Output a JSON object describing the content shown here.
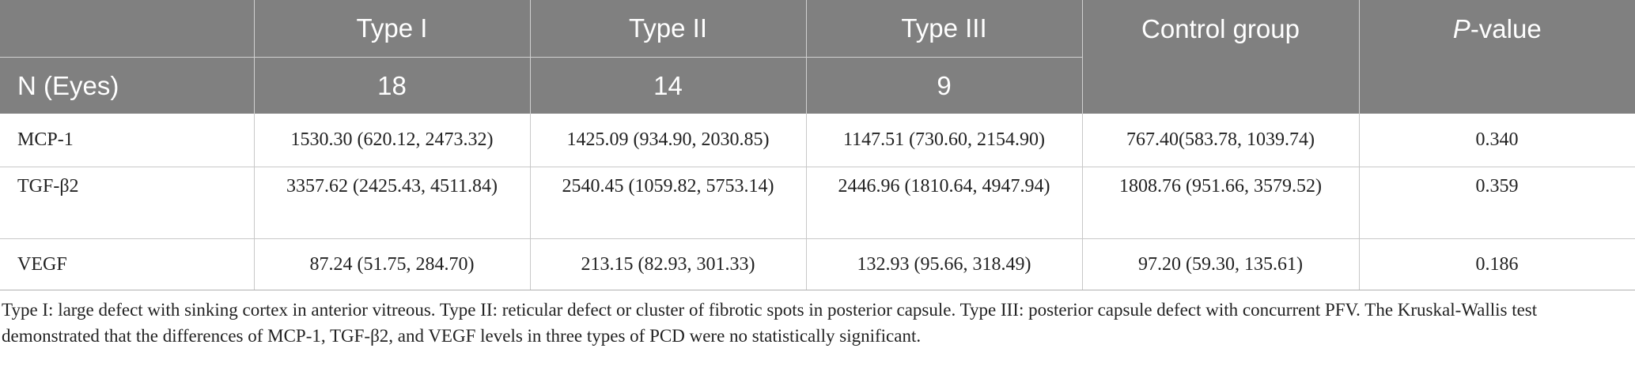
{
  "header": {
    "row1": {
      "col0": "",
      "type1": "Type I",
      "type2": "Type II",
      "type3": "Type III",
      "control": "Control group",
      "pvalue_italic": "P",
      "pvalue_rest": "-value"
    },
    "row2": {
      "label": "N (Eyes)",
      "type1": "18",
      "type2": "14",
      "type3": "9"
    }
  },
  "rows": [
    {
      "label": "MCP-1",
      "type1": "1530.30 (620.12, 2473.32)",
      "type2": "1425.09 (934.90, 2030.85)",
      "type3": "1147.51 (730.60, 2154.90)",
      "control": "767.40(583.78, 1039.74)",
      "pvalue": "0.340"
    },
    {
      "label": "TGF-β2",
      "type1": "3357.62 (2425.43, 4511.84)",
      "type2": "2540.45 (1059.82, 5753.14)",
      "type3": "2446.96 (1810.64, 4947.94)",
      "control": "1808.76 (951.66, 3579.52)",
      "pvalue": "0.359"
    },
    {
      "label": "VEGF",
      "type1": "87.24 (51.75, 284.70)",
      "type2": "213.15 (82.93, 301.33)",
      "type3": "132.93 (95.66, 318.49)",
      "control": "97.20 (59.30, 135.61)",
      "pvalue": "0.186"
    }
  ],
  "footnote": "Type I: large defect with sinking cortex in anterior vitreous. Type II: reticular defect or cluster of fibrotic spots in posterior capsule. Type III: posterior capsule defect with concurrent PFV. The Kruskal-Wallis test demonstrated that the differences of MCP-1, TGF-β2, and VEGF levels in three types of PCD were no statistically significant.",
  "colors": {
    "header_bg": "#808080",
    "header_text": "#ffffff",
    "grid": "#c8c8c8"
  }
}
